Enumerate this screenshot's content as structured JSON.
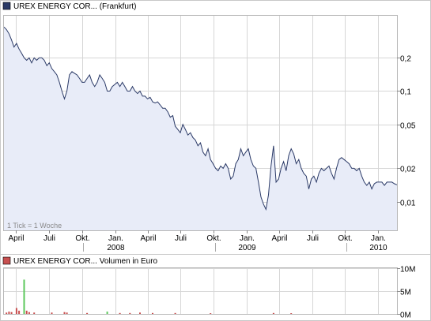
{
  "chart_data": [
    {
      "type": "area",
      "title": "UREX ENERGY COR... (Frankfurt)",
      "series_color": "#2b3a67",
      "fill_color": "#e8ecf8",
      "y_scale": "log",
      "ylim": [
        0.0055,
        0.48
      ],
      "y_ticks": [
        {
          "value": 0.2,
          "label": "0,2"
        },
        {
          "value": 0.1,
          "label": "0,1"
        },
        {
          "value": 0.05,
          "label": "0,05"
        },
        {
          "value": 0.02,
          "label": "0,02"
        },
        {
          "value": 0.01,
          "label": "0,01"
        }
      ],
      "xlim": [
        "2007-02-26",
        "2010-02-22"
      ],
      "x_ticks": [
        {
          "date": "2007-04-01",
          "label": "April",
          "sub": ""
        },
        {
          "date": "2007-07-01",
          "label": "Juli",
          "sub": ""
        },
        {
          "date": "2007-10-01",
          "label": "Okt.",
          "sub": ""
        },
        {
          "date": "2008-01-01",
          "label": "Jan.",
          "sub": "2008"
        },
        {
          "date": "2008-04-01",
          "label": "April",
          "sub": ""
        },
        {
          "date": "2008-07-01",
          "label": "Juli",
          "sub": ""
        },
        {
          "date": "2008-10-01",
          "label": "Okt.",
          "sub": ""
        },
        {
          "date": "2009-01-01",
          "label": "Jan.",
          "sub": "2009"
        },
        {
          "date": "2009-04-01",
          "label": "April",
          "sub": ""
        },
        {
          "date": "2009-07-01",
          "label": "Juli",
          "sub": ""
        },
        {
          "date": "2009-10-01",
          "label": "Okt.",
          "sub": ""
        },
        {
          "date": "2010-01-01",
          "label": "Jan.",
          "sub": "2010"
        }
      ],
      "note": "1 Tick = 1 Woche",
      "points": [
        [
          "2007-02-26",
          0.38
        ],
        [
          "2007-03-05",
          0.36
        ],
        [
          "2007-03-12",
          0.33
        ],
        [
          "2007-03-19",
          0.29
        ],
        [
          "2007-03-26",
          0.25
        ],
        [
          "2007-04-02",
          0.27
        ],
        [
          "2007-04-09",
          0.24
        ],
        [
          "2007-04-16",
          0.22
        ],
        [
          "2007-04-23",
          0.2
        ],
        [
          "2007-04-30",
          0.19
        ],
        [
          "2007-05-07",
          0.2
        ],
        [
          "2007-05-14",
          0.18
        ],
        [
          "2007-05-21",
          0.2
        ],
        [
          "2007-05-28",
          0.19
        ],
        [
          "2007-06-04",
          0.2
        ],
        [
          "2007-06-11",
          0.2
        ],
        [
          "2007-06-18",
          0.19
        ],
        [
          "2007-06-25",
          0.17
        ],
        [
          "2007-07-02",
          0.18
        ],
        [
          "2007-07-09",
          0.16
        ],
        [
          "2007-07-16",
          0.15
        ],
        [
          "2007-07-23",
          0.14
        ],
        [
          "2007-07-30",
          0.12
        ],
        [
          "2007-08-06",
          0.1
        ],
        [
          "2007-08-13",
          0.085
        ],
        [
          "2007-08-20",
          0.1
        ],
        [
          "2007-08-27",
          0.14
        ],
        [
          "2007-09-03",
          0.15
        ],
        [
          "2007-09-10",
          0.145
        ],
        [
          "2007-09-17",
          0.14
        ],
        [
          "2007-09-24",
          0.13
        ],
        [
          "2007-10-01",
          0.12
        ],
        [
          "2007-10-08",
          0.12
        ],
        [
          "2007-10-15",
          0.13
        ],
        [
          "2007-10-22",
          0.14
        ],
        [
          "2007-10-29",
          0.12
        ],
        [
          "2007-11-05",
          0.11
        ],
        [
          "2007-11-12",
          0.12
        ],
        [
          "2007-11-19",
          0.14
        ],
        [
          "2007-11-26",
          0.13
        ],
        [
          "2007-12-03",
          0.12
        ],
        [
          "2007-12-10",
          0.1
        ],
        [
          "2007-12-17",
          0.1
        ],
        [
          "2007-12-24",
          0.11
        ],
        [
          "2008-01-07",
          0.12
        ],
        [
          "2008-01-14",
          0.11
        ],
        [
          "2008-01-21",
          0.12
        ],
        [
          "2008-01-28",
          0.11
        ],
        [
          "2008-02-04",
          0.1
        ],
        [
          "2008-02-11",
          0.1
        ],
        [
          "2008-02-18",
          0.11
        ],
        [
          "2008-02-25",
          0.1
        ],
        [
          "2008-03-03",
          0.095
        ],
        [
          "2008-03-10",
          0.1
        ],
        [
          "2008-03-17",
          0.09
        ],
        [
          "2008-03-24",
          0.09
        ],
        [
          "2008-03-31",
          0.085
        ],
        [
          "2008-04-07",
          0.088
        ],
        [
          "2008-04-14",
          0.08
        ],
        [
          "2008-04-21",
          0.078
        ],
        [
          "2008-04-28",
          0.08
        ],
        [
          "2008-05-05",
          0.075
        ],
        [
          "2008-05-12",
          0.07
        ],
        [
          "2008-05-19",
          0.07
        ],
        [
          "2008-05-26",
          0.065
        ],
        [
          "2008-06-02",
          0.058
        ],
        [
          "2008-06-09",
          0.06
        ],
        [
          "2008-06-16",
          0.048
        ],
        [
          "2008-06-23",
          0.045
        ],
        [
          "2008-06-30",
          0.042
        ],
        [
          "2008-07-07",
          0.05
        ],
        [
          "2008-07-14",
          0.045
        ],
        [
          "2008-07-21",
          0.04
        ],
        [
          "2008-07-28",
          0.042
        ],
        [
          "2008-08-04",
          0.038
        ],
        [
          "2008-08-11",
          0.036
        ],
        [
          "2008-08-18",
          0.032
        ],
        [
          "2008-08-25",
          0.034
        ],
        [
          "2008-09-01",
          0.028
        ],
        [
          "2008-09-08",
          0.026
        ],
        [
          "2008-09-15",
          0.03
        ],
        [
          "2008-09-22",
          0.024
        ],
        [
          "2008-09-29",
          0.022
        ],
        [
          "2008-10-06",
          0.02
        ],
        [
          "2008-10-13",
          0.019
        ],
        [
          "2008-10-20",
          0.021
        ],
        [
          "2008-10-27",
          0.02
        ],
        [
          "2008-11-03",
          0.022
        ],
        [
          "2008-11-10",
          0.02
        ],
        [
          "2008-11-17",
          0.016
        ],
        [
          "2008-11-24",
          0.017
        ],
        [
          "2008-12-01",
          0.022
        ],
        [
          "2008-12-08",
          0.024
        ],
        [
          "2008-12-15",
          0.03
        ],
        [
          "2008-12-22",
          0.026
        ],
        [
          "2008-12-29",
          0.028
        ],
        [
          "2009-01-05",
          0.03
        ],
        [
          "2009-01-12",
          0.024
        ],
        [
          "2009-01-19",
          0.021
        ],
        [
          "2009-01-26",
          0.02
        ],
        [
          "2009-02-02",
          0.015
        ],
        [
          "2009-02-09",
          0.011
        ],
        [
          "2009-02-16",
          0.0095
        ],
        [
          "2009-02-23",
          0.0085
        ],
        [
          "2009-03-02",
          0.0115
        ],
        [
          "2009-03-09",
          0.021
        ],
        [
          "2009-03-16",
          0.032
        ],
        [
          "2009-03-23",
          0.015
        ],
        [
          "2009-03-30",
          0.016
        ],
        [
          "2009-04-06",
          0.02
        ],
        [
          "2009-04-13",
          0.023
        ],
        [
          "2009-04-20",
          0.019
        ],
        [
          "2009-04-27",
          0.026
        ],
        [
          "2009-05-04",
          0.03
        ],
        [
          "2009-05-11",
          0.027
        ],
        [
          "2009-05-18",
          0.022
        ],
        [
          "2009-05-25",
          0.024
        ],
        [
          "2009-06-01",
          0.02
        ],
        [
          "2009-06-08",
          0.018
        ],
        [
          "2009-06-15",
          0.017
        ],
        [
          "2009-06-22",
          0.013
        ],
        [
          "2009-06-29",
          0.016
        ],
        [
          "2009-07-06",
          0.017
        ],
        [
          "2009-07-13",
          0.015
        ],
        [
          "2009-07-20",
          0.018
        ],
        [
          "2009-07-27",
          0.02
        ],
        [
          "2009-08-03",
          0.019
        ],
        [
          "2009-08-10",
          0.02
        ],
        [
          "2009-08-17",
          0.021
        ],
        [
          "2009-08-24",
          0.018
        ],
        [
          "2009-08-31",
          0.016
        ],
        [
          "2009-09-07",
          0.02
        ],
        [
          "2009-09-14",
          0.024
        ],
        [
          "2009-09-21",
          0.025
        ],
        [
          "2009-09-28",
          0.024
        ],
        [
          "2009-10-05",
          0.023
        ],
        [
          "2009-10-12",
          0.022
        ],
        [
          "2009-10-19",
          0.02
        ],
        [
          "2009-10-26",
          0.02
        ],
        [
          "2009-11-02",
          0.019
        ],
        [
          "2009-11-09",
          0.02
        ],
        [
          "2009-11-16",
          0.017
        ],
        [
          "2009-11-23",
          0.015
        ],
        [
          "2009-11-30",
          0.014
        ],
        [
          "2009-12-07",
          0.015
        ],
        [
          "2009-12-14",
          0.013
        ],
        [
          "2009-12-21",
          0.0145
        ],
        [
          "2009-12-28",
          0.015
        ],
        [
          "2010-01-04",
          0.015
        ],
        [
          "2010-01-11",
          0.015
        ],
        [
          "2010-01-18",
          0.014
        ],
        [
          "2010-01-25",
          0.015
        ],
        [
          "2010-02-01",
          0.015
        ],
        [
          "2010-02-08",
          0.015
        ],
        [
          "2010-02-15",
          0.0145
        ],
        [
          "2010-02-22",
          0.0142
        ]
      ]
    },
    {
      "type": "bar",
      "title": "UREX ENERGY COR... Volumen in Euro",
      "bar_color": "#c85050",
      "highlight_color": "#5cc85c",
      "ylim": [
        0,
        10000000
      ],
      "y_ticks": [
        {
          "value": 10000000,
          "label": "10M"
        },
        {
          "value": 5000000,
          "label": "5M"
        },
        {
          "value": 0,
          "label": "0M"
        }
      ],
      "points": [
        [
          "2007-03-05",
          300000,
          0
        ],
        [
          "2007-03-12",
          500000,
          0
        ],
        [
          "2007-03-19",
          400000,
          0
        ],
        [
          "2007-04-02",
          1300000,
          0
        ],
        [
          "2007-04-09",
          700000,
          0
        ],
        [
          "2007-04-23",
          7500000,
          1
        ],
        [
          "2007-04-30",
          700000,
          0
        ],
        [
          "2007-05-07",
          400000,
          0
        ],
        [
          "2007-05-21",
          300000,
          0
        ],
        [
          "2007-07-09",
          300000,
          0
        ],
        [
          "2007-08-13",
          400000,
          0
        ],
        [
          "2007-08-20",
          300000,
          0
        ],
        [
          "2007-10-15",
          200000,
          0
        ],
        [
          "2007-12-10",
          500000,
          1
        ],
        [
          "2008-01-14",
          200000,
          0
        ],
        [
          "2008-02-11",
          200000,
          0
        ],
        [
          "2008-03-10",
          300000,
          0
        ],
        [
          "2008-04-14",
          200000,
          0
        ],
        [
          "2008-06-16",
          200000,
          0
        ],
        [
          "2008-09-22",
          150000,
          0
        ],
        [
          "2009-03-16",
          200000,
          0
        ],
        [
          "2009-05-04",
          150000,
          0
        ]
      ]
    }
  ]
}
